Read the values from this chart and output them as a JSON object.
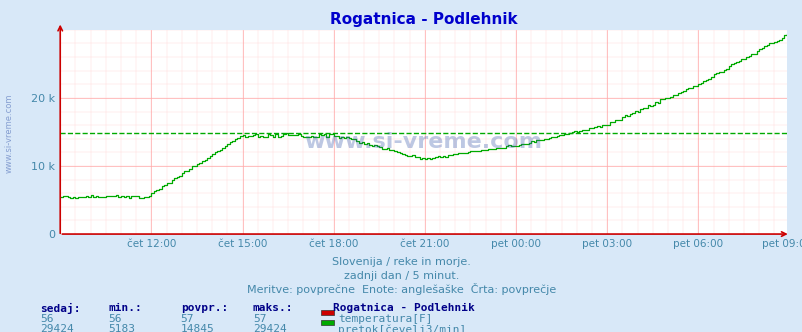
{
  "title": "Rogatnica - Podlehnik",
  "title_color": "#0000cc",
  "bg_color": "#d8e8f8",
  "plot_bg_color": "#ffffff",
  "grid_color_major": "#ffaaaa",
  "grid_color_minor": "#ffd8d8",
  "tick_label_color": "#4488aa",
  "watermark": "www.si-vreme.com",
  "subtitle_lines": [
    "Slovenija / reke in morje.",
    "zadnji dan / 5 minut.",
    "Meritve: povprečne  Enote: anglešaške  Črta: povprečje"
  ],
  "subtitle_color": "#4488aa",
  "table_header_color": "#000088",
  "table_value_color": "#4488aa",
  "table_label_color": "#000088",
  "legend_title": "Rogatnica - Podlehnik",
  "legend_items": [
    {
      "label": "temperatura[F]",
      "color": "#cc0000"
    },
    {
      "label": "pretok[čevelj3/min]",
      "color": "#00aa00"
    }
  ],
  "table_data": {
    "headers": [
      "sedaj:",
      "min.:",
      "povpr.:",
      "maks.:"
    ],
    "rows": [
      [
        56,
        56,
        57,
        57
      ],
      [
        29424,
        5183,
        14845,
        29424
      ]
    ]
  },
  "x_tick_labels": [
    "čet 12:00",
    "čet 15:00",
    "čet 18:00",
    "čet 21:00",
    "pet 00:00",
    "pet 03:00",
    "pet 06:00",
    "pet 09:00"
  ],
  "x_tick_positions": [
    36,
    72,
    108,
    144,
    180,
    216,
    252,
    287
  ],
  "y_tick_labels": [
    "0",
    "10 k",
    "20 k"
  ],
  "y_tick_positions": [
    0,
    10000,
    20000
  ],
  "y_lim": [
    0,
    30000
  ],
  "avg_line_value": 14845,
  "avg_line_color": "#00aa00",
  "flow_color": "#00aa00",
  "temp_color": "#cc0000",
  "arrow_color": "#cc0000",
  "n_points": 288,
  "flow_min": 5183,
  "flow_max": 29424,
  "flow_avg": 14845
}
